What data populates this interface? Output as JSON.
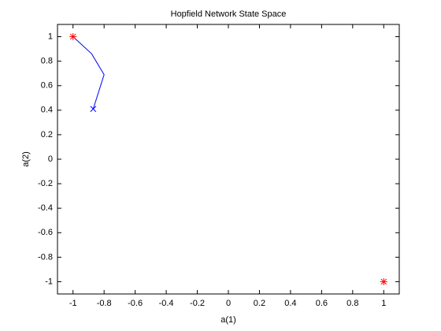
{
  "chart_data": {
    "type": "line",
    "title": "Hopfield Network State Space",
    "xlabel": "a(1)",
    "ylabel": "a(2)",
    "xlim": [
      -1.1,
      1.1
    ],
    "ylim": [
      -1.1,
      1.1
    ],
    "xticks": [
      -1,
      -0.8,
      -0.6,
      -0.4,
      -0.2,
      0,
      0.2,
      0.4,
      0.6,
      0.8,
      1
    ],
    "yticks": [
      -1,
      -0.8,
      -0.6,
      -0.4,
      -0.2,
      0,
      0.2,
      0.4,
      0.6,
      0.8,
      1
    ],
    "grid": false,
    "series": [
      {
        "color": "#0000ff",
        "marker": "none",
        "x": [
          -0.87,
          -0.8,
          -0.88,
          -1
        ],
        "values": [
          0.41,
          0.69,
          0.86,
          1
        ]
      },
      {
        "color": "#0000ff",
        "marker": "x",
        "x": [
          -0.87
        ],
        "values": [
          0.41
        ]
      },
      {
        "color": "#ff0000",
        "marker": "star",
        "x": [
          -1,
          1
        ],
        "values": [
          1,
          -1
        ]
      }
    ]
  }
}
